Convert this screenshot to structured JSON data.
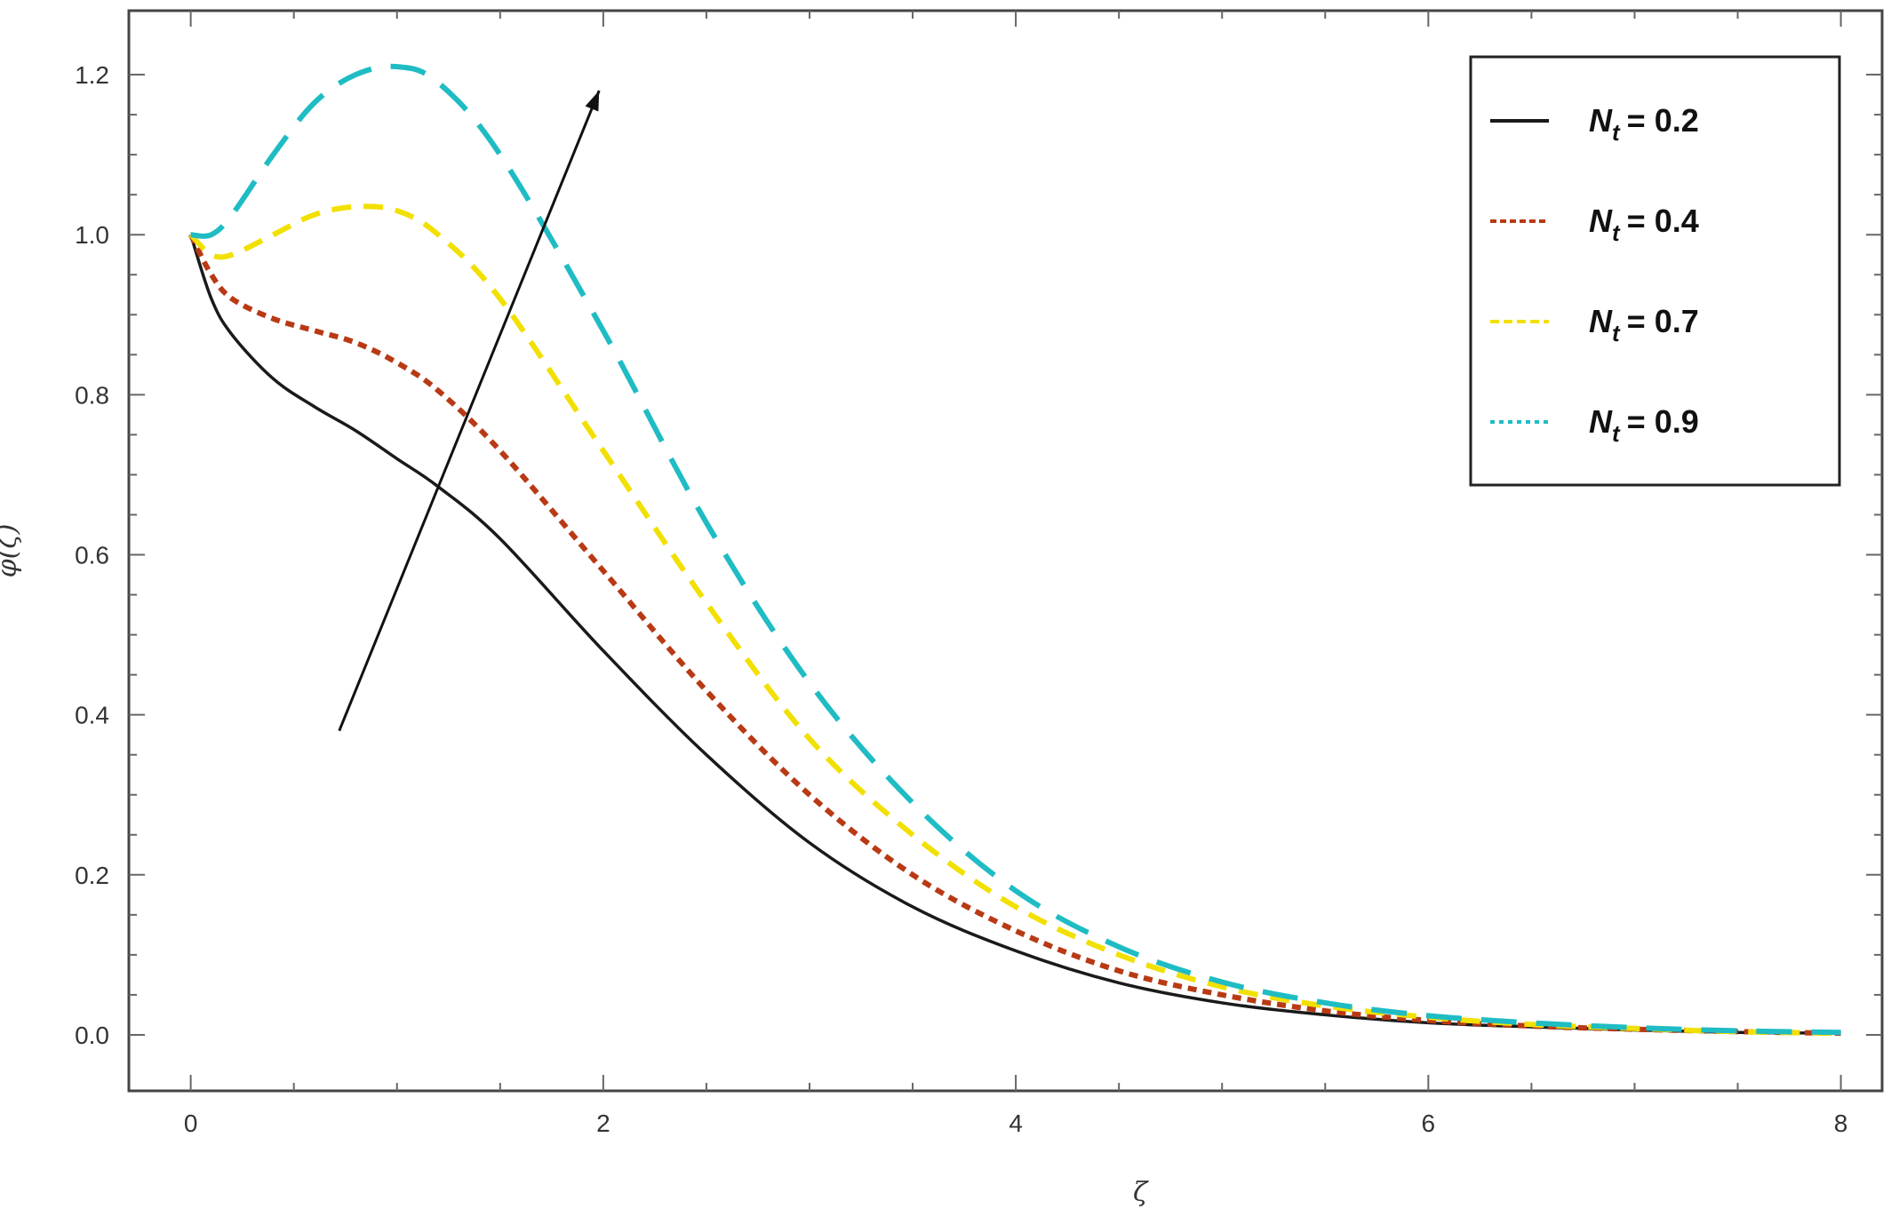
{
  "chart_data": {
    "type": "line",
    "xlabel": "ζ",
    "ylabel": "φ(ζ)",
    "xlim": [
      -0.3,
      8.2
    ],
    "ylim": [
      -0.07,
      1.28
    ],
    "x_ticks": [
      "0",
      "2",
      "4",
      "6",
      "8"
    ],
    "y_ticks": [
      "0.0",
      "0.2",
      "0.4",
      "0.6",
      "0.8",
      "1.0",
      "1.2"
    ],
    "legend_position": "top-right",
    "legend_symbol": "N",
    "legend_subscript": "t",
    "series": [
      {
        "name": "= 0.2",
        "color": "#1a1a1a",
        "dash": "solid",
        "x": [
          0,
          0.1,
          0.2,
          0.4,
          0.6,
          0.8,
          1.0,
          1.2,
          1.5,
          2.0,
          2.5,
          3.0,
          3.5,
          4.0,
          4.5,
          5.0,
          5.5,
          6.0,
          6.5,
          7.0,
          7.5,
          8.0
        ],
        "y": [
          1.0,
          0.92,
          0.875,
          0.82,
          0.785,
          0.755,
          0.72,
          0.685,
          0.62,
          0.48,
          0.35,
          0.24,
          0.16,
          0.105,
          0.065,
          0.04,
          0.025,
          0.015,
          0.01,
          0.006,
          0.003,
          0.002
        ]
      },
      {
        "name": "= 0.4",
        "color": "#b83a14",
        "dash": "short",
        "x": [
          0,
          0.1,
          0.2,
          0.4,
          0.6,
          0.8,
          1.0,
          1.2,
          1.5,
          2.0,
          2.5,
          3.0,
          3.5,
          4.0,
          4.5,
          5.0,
          5.5,
          6.0,
          6.5,
          7.0,
          7.5,
          8.0
        ],
        "y": [
          1.0,
          0.95,
          0.92,
          0.895,
          0.88,
          0.865,
          0.84,
          0.805,
          0.73,
          0.58,
          0.43,
          0.3,
          0.2,
          0.13,
          0.08,
          0.05,
          0.03,
          0.018,
          0.011,
          0.007,
          0.004,
          0.002
        ]
      },
      {
        "name": "= 0.7",
        "color": "#f2e000",
        "dash": "medium",
        "x": [
          0,
          0.1,
          0.2,
          0.4,
          0.6,
          0.8,
          1.0,
          1.2,
          1.5,
          2.0,
          2.5,
          3.0,
          3.5,
          4.0,
          4.5,
          5.0,
          5.5,
          6.0,
          6.5,
          7.0,
          7.5,
          8.0
        ],
        "y": [
          1.0,
          0.975,
          0.975,
          1.0,
          1.025,
          1.035,
          1.03,
          1.0,
          0.92,
          0.73,
          0.54,
          0.37,
          0.25,
          0.16,
          0.1,
          0.06,
          0.036,
          0.022,
          0.013,
          0.008,
          0.004,
          0.002
        ]
      },
      {
        "name": "= 0.9",
        "color": "#1fbcc4",
        "dash": "long",
        "x": [
          0,
          0.1,
          0.2,
          0.4,
          0.6,
          0.8,
          1.0,
          1.2,
          1.5,
          2.0,
          2.5,
          3.0,
          3.5,
          4.0,
          4.5,
          5.0,
          5.5,
          6.0,
          6.5,
          7.0,
          7.5,
          8.0
        ],
        "y": [
          1.0,
          1.0,
          1.025,
          1.1,
          1.165,
          1.2,
          1.21,
          1.19,
          1.1,
          0.88,
          0.64,
          0.44,
          0.29,
          0.18,
          0.11,
          0.066,
          0.04,
          0.024,
          0.015,
          0.009,
          0.005,
          0.003
        ]
      }
    ],
    "annotation_arrow": {
      "from": [
        0.72,
        0.38
      ],
      "to": [
        1.98,
        1.18
      ]
    }
  }
}
